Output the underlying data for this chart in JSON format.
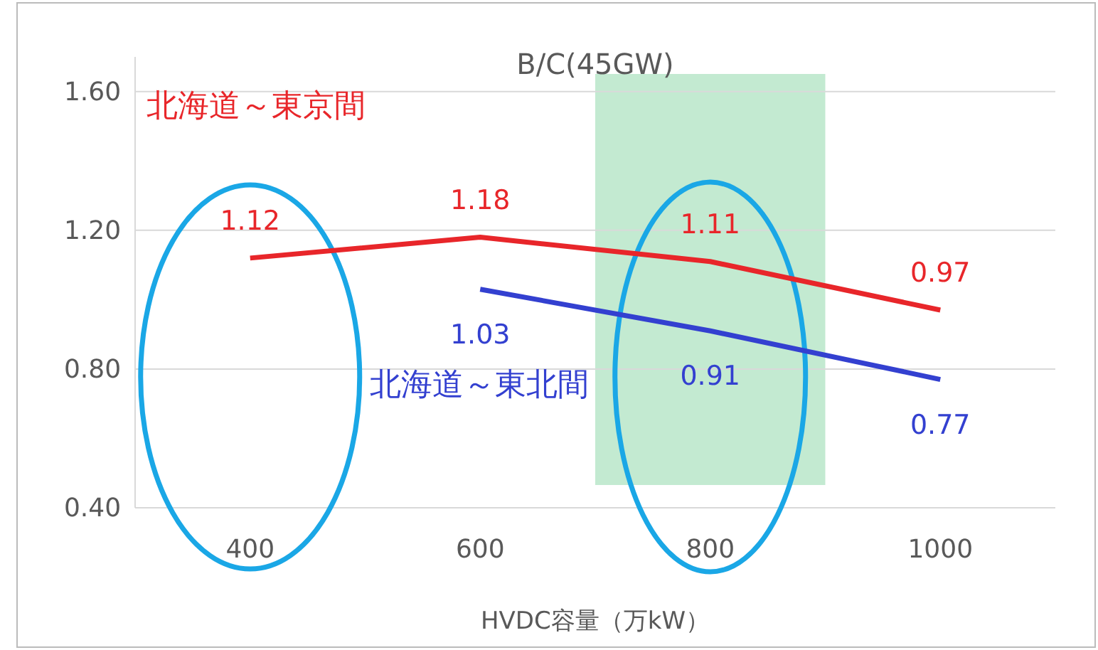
{
  "chart_data": {
    "type": "line",
    "title": "B/C(45GW)",
    "xlabel": "HVDC容量（万kW）",
    "x": [
      400,
      600,
      800,
      1000
    ],
    "xlim": [
      300,
      1100
    ],
    "xticks": [
      400,
      600,
      800,
      1000
    ],
    "ylim": [
      0.4,
      1.7
    ],
    "yticks": [
      {
        "value": 0.4,
        "label": "0.40"
      },
      {
        "value": 0.8,
        "label": "0.80"
      },
      {
        "value": 1.2,
        "label": "1.20"
      },
      {
        "value": 1.6,
        "label": "1.60"
      }
    ],
    "series": [
      {
        "name": "北海道～東京間",
        "color": "#e8262a",
        "values": [
          1.12,
          1.18,
          1.11,
          0.97
        ]
      },
      {
        "name": "北海道～東北間",
        "color": "#3340d0",
        "values": [
          null,
          1.03,
          0.91,
          0.77
        ]
      }
    ],
    "bands": [
      {
        "axis": "x",
        "from": 700,
        "to": 900,
        "color": "#b9e6c9"
      }
    ],
    "grid": "y",
    "legend": false,
    "data_labels": true,
    "marker": "none",
    "line_style": "solid"
  }
}
